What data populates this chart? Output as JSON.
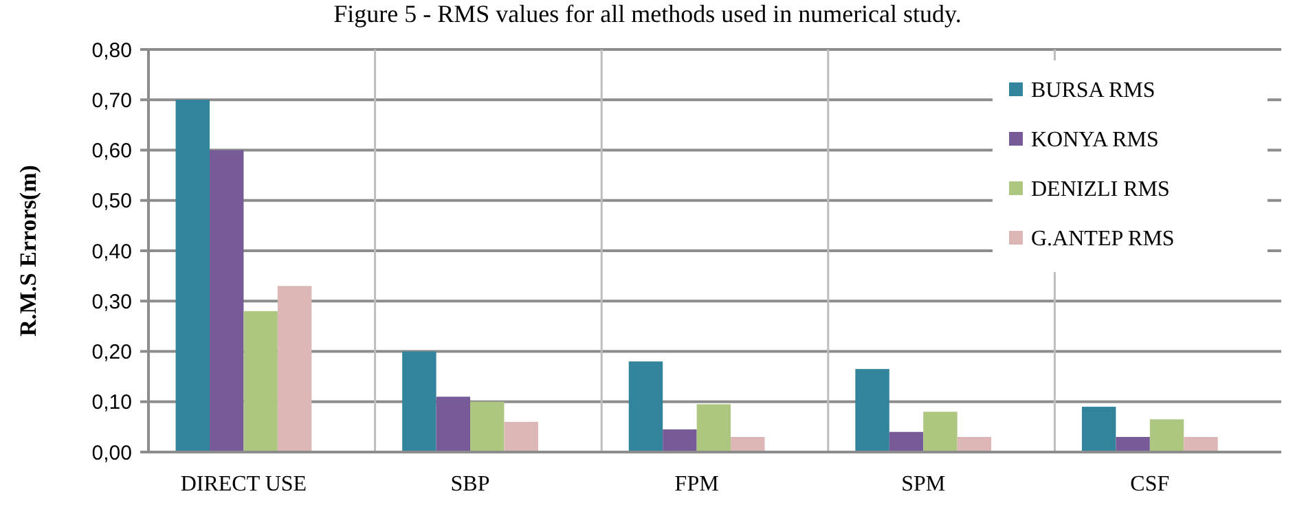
{
  "chart_data": {
    "type": "bar",
    "title": "Figure 5 - RMS values for all methods used in numerical study.",
    "ylabel": "R.M.S Errors(m)",
    "categories": [
      "DIRECT USE",
      "SBP",
      "FPM",
      "SPM",
      "CSF"
    ],
    "series": [
      {
        "name": "BURSA RMS",
        "color": "#31849b",
        "values": [
          0.7,
          0.2,
          0.18,
          0.165,
          0.09
        ]
      },
      {
        "name": "KONYA RMS",
        "color": "#765b98",
        "values": [
          0.6,
          0.11,
          0.045,
          0.04,
          0.03
        ]
      },
      {
        "name": "DENIZLI RMS",
        "color": "#adc680",
        "values": [
          0.28,
          0.1,
          0.095,
          0.08,
          0.065
        ]
      },
      {
        "name": "G.ANTEP RMS",
        "color": "#ddb6b6",
        "values": [
          0.33,
          0.06,
          0.03,
          0.03,
          0.03
        ]
      }
    ],
    "ylim": [
      0,
      0.8
    ],
    "yticks": [
      {
        "value": 0,
        "label": "0,00"
      },
      {
        "value": 0.1,
        "label": "0,10"
      },
      {
        "value": 0.2,
        "label": "0,20"
      },
      {
        "value": 0.3,
        "label": "0,30"
      },
      {
        "value": 0.4,
        "label": "0,40"
      },
      {
        "value": 0.5,
        "label": "0,50"
      },
      {
        "value": 0.6,
        "label": "0,60"
      },
      {
        "value": 0.7,
        "label": "0,70"
      },
      {
        "value": 0.8,
        "label": "0,80"
      }
    ],
    "grid": true,
    "legend": "top right"
  }
}
